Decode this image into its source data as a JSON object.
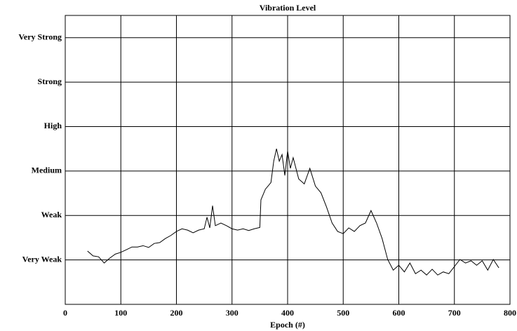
{
  "chart_data": {
    "type": "line",
    "title": "Vibration Level",
    "x_label": "Epoch (#)",
    "x": [
      40,
      50,
      60,
      70,
      80,
      90,
      100,
      110,
      120,
      130,
      140,
      150,
      160,
      170,
      180,
      190,
      200,
      210,
      220,
      230,
      240,
      250,
      255,
      260,
      265,
      270,
      280,
      290,
      300,
      310,
      320,
      330,
      340,
      350,
      352,
      360,
      370,
      375,
      380,
      385,
      390,
      395,
      400,
      405,
      410,
      420,
      430,
      440,
      450,
      460,
      470,
      480,
      490,
      500,
      510,
      520,
      530,
      540,
      550,
      560,
      570,
      580,
      590,
      600,
      610,
      620,
      630,
      640,
      650,
      660,
      670,
      680,
      690,
      700,
      710,
      720,
      730,
      740,
      750,
      760,
      770,
      780
    ],
    "series": [
      {
        "name": "Vibration",
        "color": "#000000",
        "values": [
          1.2,
          1.09,
          1.07,
          0.93,
          1.04,
          1.13,
          1.17,
          1.23,
          1.29,
          1.29,
          1.32,
          1.28,
          1.37,
          1.39,
          1.48,
          1.55,
          1.64,
          1.7,
          1.67,
          1.61,
          1.67,
          1.7,
          1.96,
          1.72,
          2.22,
          1.77,
          1.83,
          1.77,
          1.7,
          1.67,
          1.7,
          1.66,
          1.7,
          1.73,
          2.35,
          2.59,
          2.74,
          3.22,
          3.5,
          3.22,
          3.37,
          2.9,
          3.45,
          3.06,
          3.3,
          2.82,
          2.71,
          3.06,
          2.66,
          2.51,
          2.19,
          1.83,
          1.64,
          1.59,
          1.72,
          1.64,
          1.77,
          1.83,
          2.11,
          1.83,
          1.48,
          1.01,
          0.77,
          0.88,
          0.73,
          0.93,
          0.69,
          0.77,
          0.66,
          0.79,
          0.66,
          0.73,
          0.69,
          0.85,
          1.01,
          0.93,
          0.98,
          0.88,
          0.98,
          0.77,
          1.01,
          0.82
        ]
      }
    ],
    "xlim": [
      0,
      800
    ],
    "xticks": [
      0,
      100,
      200,
      300,
      400,
      500,
      600,
      700,
      800
    ],
    "ylim": [
      0,
      6.5
    ],
    "yticks": [
      {
        "value": 1,
        "label": "Very Weak"
      },
      {
        "value": 2,
        "label": "Weak"
      },
      {
        "value": 3,
        "label": "Medium"
      },
      {
        "value": 4,
        "label": "High"
      },
      {
        "value": 5,
        "label": "Strong"
      },
      {
        "value": 6,
        "label": "Very Strong"
      }
    ],
    "grid": true
  }
}
